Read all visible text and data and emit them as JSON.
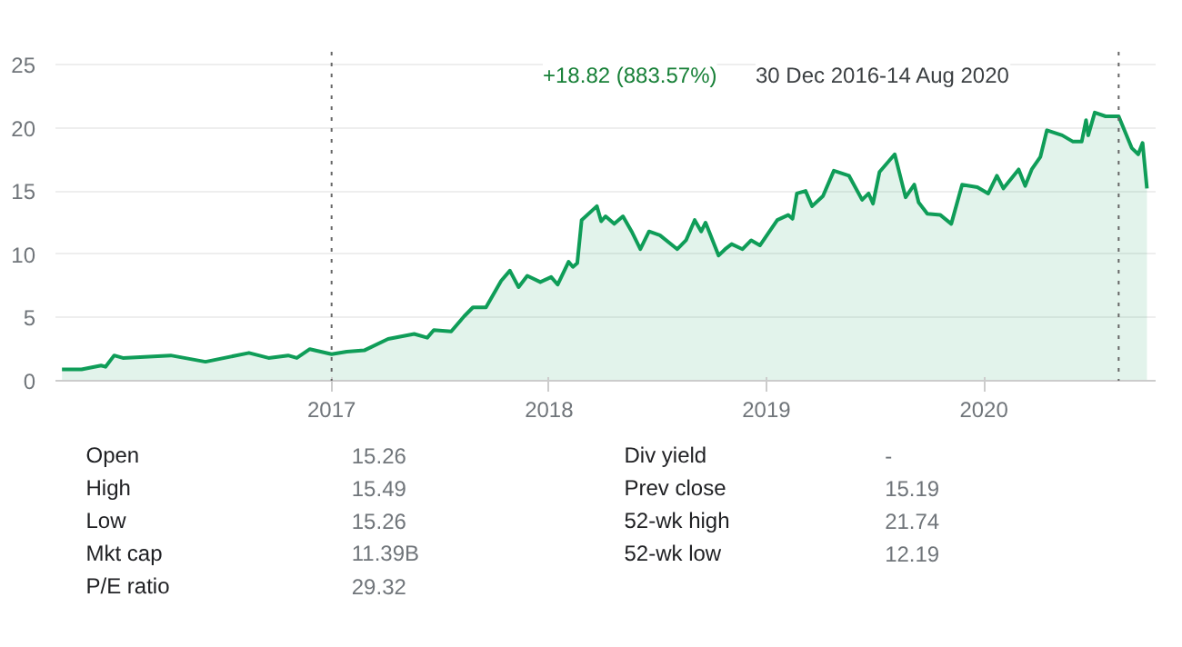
{
  "chart_data": [
    {
      "type": "area",
      "x": [
        2015.76,
        2015.85,
        2015.94,
        2015.96,
        2016.0,
        2016.04,
        2016.26,
        2016.42,
        2016.62,
        2016.71,
        2016.8,
        2016.84,
        2016.9,
        2017.0,
        2017.07,
        2017.15,
        2017.26,
        2017.38,
        2017.44,
        2017.47,
        2017.55,
        2017.61,
        2017.65,
        2017.71,
        2017.78,
        2017.82,
        2017.86,
        2017.9,
        2017.96,
        2018.01,
        2018.04,
        2018.09,
        2018.11,
        2018.13,
        2018.15,
        2018.22,
        2018.24,
        2018.26,
        2018.3,
        2018.34,
        2018.38,
        2018.42,
        2018.46,
        2018.51,
        2018.59,
        2018.63,
        2018.67,
        2018.7,
        2018.72,
        2018.78,
        2018.81,
        2018.84,
        2018.89,
        2018.93,
        2018.97,
        2019.05,
        2019.1,
        2019.12,
        2019.14,
        2019.18,
        2019.21,
        2019.26,
        2019.31,
        2019.38,
        2019.44,
        2019.47,
        2019.49,
        2019.52,
        2019.59,
        2019.64,
        2019.68,
        2019.7,
        2019.74,
        2019.8,
        2019.85,
        2019.9,
        2019.97,
        2020.02,
        2020.06,
        2020.09,
        2020.16,
        2020.19,
        2020.22,
        2020.26,
        2020.29,
        2020.36,
        2020.41,
        2020.45,
        2020.47,
        2020.48,
        2020.51,
        2020.56,
        2020.62,
        2020.68,
        2020.71,
        2020.73,
        2020.75
      ],
      "series": [
        {
          "color": "#0f9d58",
          "values": [
            0.9,
            0.9,
            1.2,
            1.1,
            2.0,
            1.8,
            2.0,
            1.5,
            2.2,
            1.8,
            2.0,
            1.8,
            2.5,
            2.1,
            2.3,
            2.4,
            3.3,
            3.7,
            3.4,
            4.0,
            3.9,
            5.1,
            5.8,
            5.8,
            7.9,
            8.7,
            7.4,
            8.3,
            7.8,
            8.2,
            7.6,
            9.4,
            9.0,
            9.3,
            12.7,
            13.8,
            12.6,
            13.0,
            12.4,
            13.0,
            11.8,
            10.4,
            11.8,
            11.5,
            10.4,
            11.1,
            12.7,
            11.8,
            12.5,
            9.9,
            10.4,
            10.8,
            10.4,
            11.1,
            10.7,
            12.7,
            13.1,
            12.8,
            14.8,
            15.0,
            13.8,
            14.6,
            16.6,
            16.2,
            14.3,
            14.8,
            14.0,
            16.5,
            17.9,
            14.5,
            15.5,
            14.1,
            13.2,
            13.1,
            12.4,
            15.5,
            15.3,
            14.8,
            16.2,
            15.2,
            16.7,
            15.4,
            16.7,
            17.7,
            19.8,
            19.4,
            18.9,
            18.9,
            20.6,
            19.4,
            21.2,
            20.9,
            20.9,
            18.4,
            17.9,
            18.8,
            15.2
          ]
        }
      ],
      "xlim": [
        2015.73,
        2020.79
      ],
      "xticks": [
        2017,
        2018,
        2019,
        2020
      ],
      "ylim": [
        0,
        26
      ],
      "yticks": [
        0,
        5,
        10,
        15,
        20,
        25
      ],
      "grid": "y",
      "ref_lines": [
        {
          "axis": "x",
          "value": 2017.0,
          "line_style": "dotted"
        },
        {
          "axis": "x",
          "value": 2020.62,
          "line_style": "dotted"
        }
      ],
      "annotations": [
        "+18.82 (883.57%)",
        "30 Dec 2016-14 Aug 2020"
      ]
    },
    {
      "type": "other",
      "annotations": [
        "Open",
        "15.26",
        "Div yield",
        "-",
        "High",
        "15.49",
        "Prev close",
        "15.19",
        "Low",
        "15.26",
        "52-wk high",
        "21.74",
        "Mkt cap",
        "11.39B",
        "52-wk low",
        "12.19",
        "P/E ratio",
        "29.32"
      ]
    }
  ]
}
